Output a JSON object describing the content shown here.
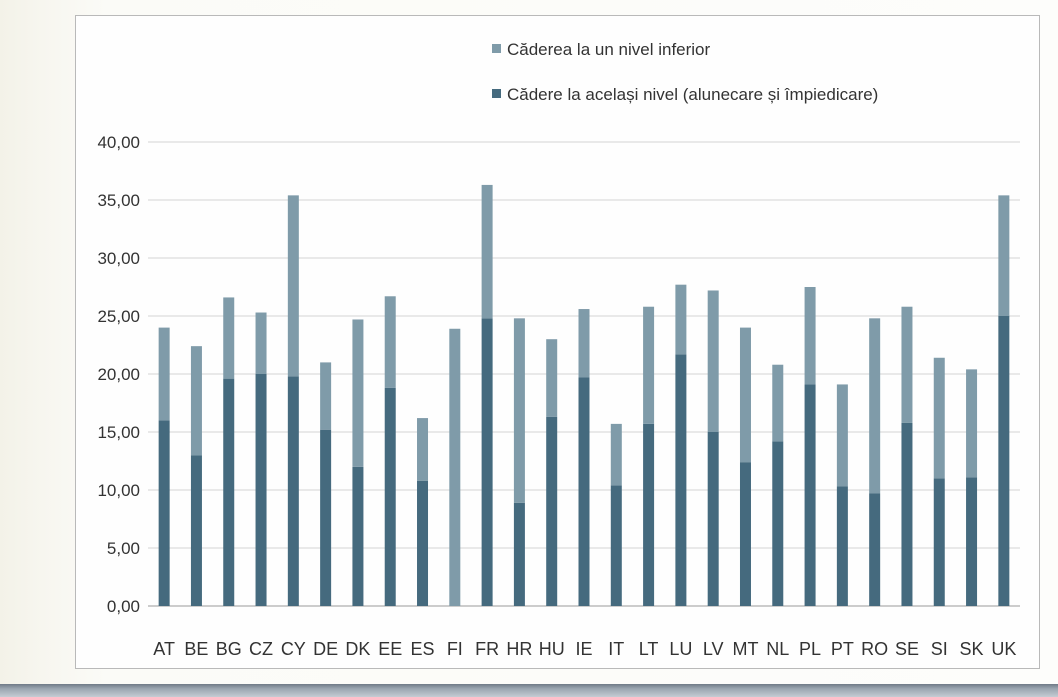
{
  "chart_data": {
    "type": "bar",
    "stacked": true,
    "categories": [
      "AT",
      "BE",
      "BG",
      "CZ",
      "CY",
      "DE",
      "DK",
      "EE",
      "ES",
      "FI",
      "FR",
      "HR",
      "HU",
      "IE",
      "IT",
      "LT",
      "LU",
      "LV",
      "MT",
      "NL",
      "PL",
      "PT",
      "RO",
      "SE",
      "SI",
      "SK",
      "UK"
    ],
    "series": [
      {
        "name": "Cădere la același nivel (alunecare și împiedicare)",
        "color": "#456a7e",
        "values": [
          16.0,
          13.0,
          19.6,
          20.0,
          19.8,
          15.2,
          12.0,
          18.8,
          10.8,
          0.0,
          24.8,
          8.9,
          16.3,
          19.7,
          10.4,
          15.7,
          21.7,
          15.0,
          12.4,
          14.2,
          19.1,
          10.3,
          9.7,
          15.8,
          11.0,
          11.1,
          25.0
        ]
      },
      {
        "name": "Căderea la un nivel inferior",
        "color": "#7f9ba9",
        "values": [
          8.0,
          9.4,
          7.0,
          5.3,
          15.6,
          5.8,
          12.7,
          7.9,
          5.4,
          23.9,
          11.5,
          15.9,
          6.7,
          5.9,
          5.3,
          10.1,
          6.0,
          12.2,
          11.6,
          6.6,
          8.4,
          8.8,
          15.1,
          10.0,
          10.4,
          9.3,
          10.4
        ]
      }
    ],
    "ylim": [
      0,
      40
    ],
    "yticks": [
      "0,00",
      "5,00",
      "10,00",
      "15,00",
      "20,00",
      "25,00",
      "30,00",
      "35,00",
      "40,00"
    ],
    "legend_position": "top-right",
    "grid": true
  },
  "legend": {
    "items": [
      {
        "label": "Căderea la un nivel inferior",
        "color": "#7f9ba9"
      },
      {
        "label": "Cădere la același nivel (alunecare și împiedicare)",
        "color": "#456a7e"
      }
    ]
  }
}
